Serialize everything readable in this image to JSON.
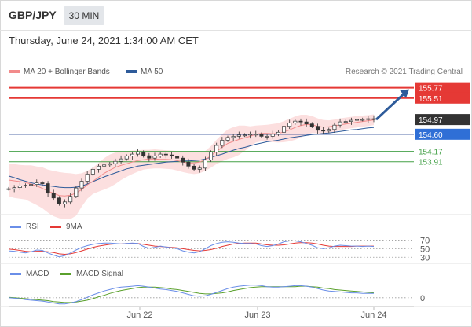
{
  "header": {
    "symbol": "GBP/JPY",
    "timeframe": "30 MIN"
  },
  "date_label": "Thursday, June 24, 2021 1:34:00 AM CET",
  "legend": {
    "ma20_label": "MA 20 + Bollinger Bands",
    "ma50_label": "MA 50",
    "credit": "Research © 2021 Trading Central",
    "rsi_label": "RSI",
    "rsi_ma_label": "9MA",
    "macd_label": "MACD",
    "macd_signal_label": "MACD Signal"
  },
  "colors": {
    "price": "#333333",
    "ma20": "#f28b8b",
    "band": "#fbd4d4",
    "ma50": "#2e5b9a",
    "resistance": "#e53935",
    "pivot": "#1f3f8f",
    "support": "#43a047",
    "rsi": "#6a8ee8",
    "rsi_ma": "#e53935",
    "macd": "#6a8ee8",
    "macd_signal": "#5aa02c",
    "arrow": "#2e5b9a",
    "last_price": "#333333"
  },
  "chart_data": [
    {
      "type": "line",
      "panel": "price",
      "ylim": [
        152.6,
        156.0
      ],
      "x_tick_labels": [
        "Jun 22",
        "Jun 23",
        "Jun 24"
      ],
      "price_labels": [
        "155.77",
        "155.51",
        "154.97",
        "154.60",
        "154.17",
        "153.91"
      ],
      "levels": [
        {
          "value": 155.77,
          "label": "155.77",
          "kind": "resistance"
        },
        {
          "value": 155.51,
          "label": "155.51",
          "kind": "resistance"
        },
        {
          "value": 154.6,
          "label": "154.60",
          "kind": "pivot"
        },
        {
          "value": 154.17,
          "label": "154.17",
          "kind": "support"
        },
        {
          "value": 153.91,
          "label": "153.91",
          "kind": "support"
        }
      ],
      "last_price": 154.97,
      "series": [
        {
          "name": "Price",
          "values": [
            153.23,
            153.26,
            153.3,
            153.32,
            153.34,
            153.38,
            153.36,
            153.12,
            153.0,
            152.85,
            152.9,
            153.04,
            153.25,
            153.42,
            153.6,
            153.72,
            153.8,
            153.83,
            153.86,
            153.92,
            153.98,
            154.05,
            154.1,
            154.15,
            154.06,
            154.0,
            154.05,
            154.1,
            154.08,
            154.05,
            154.0,
            153.9,
            153.8,
            153.72,
            153.75,
            153.95,
            154.15,
            154.32,
            154.45,
            154.52,
            154.55,
            154.58,
            154.58,
            154.6,
            154.6,
            154.55,
            154.55,
            154.6,
            154.65,
            154.8,
            154.88,
            154.93,
            154.91,
            154.86,
            154.8,
            154.7,
            154.68,
            154.72,
            154.83,
            154.91,
            154.92,
            154.95,
            154.97,
            154.97,
            154.99,
            154.97
          ]
        },
        {
          "name": "MA 20",
          "values": [
            153.45,
            153.43,
            153.41,
            153.39,
            153.35,
            153.3,
            153.24,
            153.17,
            153.12,
            153.06,
            153.05,
            153.07,
            153.12,
            153.21,
            153.33,
            153.42,
            153.52,
            153.62,
            153.7,
            153.77,
            153.82,
            153.86,
            153.9,
            153.94,
            153.96,
            153.98,
            153.98,
            153.97,
            153.97,
            153.96,
            153.94,
            153.9,
            153.88,
            153.88,
            153.9,
            153.96,
            154.06,
            154.17,
            154.27,
            154.37,
            154.42,
            154.47,
            154.51,
            154.55,
            154.6,
            154.62,
            154.62,
            154.61,
            154.62,
            154.66,
            154.71,
            154.77,
            154.82,
            154.85,
            154.84,
            154.8,
            154.78,
            154.79,
            154.81,
            154.84,
            154.86,
            154.88,
            154.9,
            154.92,
            154.94,
            154.96
          ]
        },
        {
          "name": "MA 50",
          "values": [
            153.55,
            153.51,
            153.46,
            153.42,
            153.38,
            153.35,
            153.33,
            153.31,
            153.29,
            153.27,
            153.26,
            153.26,
            153.27,
            153.3,
            153.35,
            153.41,
            153.47,
            153.53,
            153.58,
            153.63,
            153.68,
            153.73,
            153.76,
            153.8,
            153.82,
            153.84,
            153.86,
            153.88,
            153.9,
            153.91,
            153.92,
            153.93,
            153.93,
            153.94,
            153.95,
            153.98,
            154.02,
            154.06,
            154.1,
            154.15,
            154.2,
            154.24,
            154.27,
            154.31,
            154.35,
            154.38,
            154.41,
            154.43,
            154.45,
            154.48,
            154.51,
            154.53,
            154.55,
            154.57,
            154.59,
            154.6,
            154.62,
            154.63,
            154.65,
            154.67,
            154.69,
            154.71,
            154.72,
            154.74,
            154.76,
            154.77
          ]
        },
        {
          "name": "Bollinger Upper",
          "values": [
            153.86,
            153.85,
            153.83,
            153.82,
            153.82,
            153.79,
            153.77,
            153.71,
            153.68,
            153.65,
            153.63,
            153.62,
            153.6,
            153.62,
            153.68,
            153.76,
            153.88,
            154.0,
            154.09,
            154.14,
            154.17,
            154.18,
            154.19,
            154.2,
            154.21,
            154.21,
            154.22,
            154.21,
            154.2,
            154.19,
            154.18,
            154.17,
            154.17,
            154.15,
            154.15,
            154.18,
            154.3,
            154.46,
            154.6,
            154.72,
            154.78,
            154.82,
            154.82,
            154.8,
            154.82,
            154.83,
            154.84,
            154.86,
            154.88,
            154.93,
            154.99,
            155.05,
            155.09,
            155.09,
            155.06,
            155.0,
            154.96,
            154.95,
            154.97,
            155.0,
            155.02,
            155.04,
            155.06,
            155.07,
            155.08,
            155.1
          ]
        },
        {
          "name": "Bollinger Lower",
          "values": [
            153.04,
            153.0,
            152.98,
            152.96,
            152.89,
            152.82,
            152.74,
            152.63,
            152.54,
            152.49,
            152.47,
            152.47,
            152.55,
            152.78,
            152.98,
            153.1,
            153.16,
            153.21,
            153.27,
            153.35,
            153.45,
            153.53,
            153.6,
            153.66,
            153.71,
            153.73,
            153.74,
            153.74,
            153.73,
            153.72,
            153.69,
            153.65,
            153.62,
            153.6,
            153.62,
            153.68,
            153.76,
            153.85,
            153.92,
            153.98,
            154.02,
            154.08,
            154.18,
            154.3,
            154.39,
            154.42,
            154.41,
            154.4,
            154.39,
            154.4,
            154.42,
            154.46,
            154.52,
            154.58,
            154.63,
            154.62,
            154.6,
            154.62,
            154.66,
            154.7,
            154.73,
            154.75,
            154.77,
            154.79,
            154.81,
            154.83
          ]
        }
      ]
    },
    {
      "type": "line",
      "panel": "rsi",
      "ylim": [
        25,
        80
      ],
      "y_tick_labels": [
        "70",
        "50",
        "30"
      ],
      "series": [
        {
          "name": "RSI",
          "values": [
            45,
            44,
            42,
            40,
            43,
            47,
            46,
            40,
            35,
            31,
            34,
            40,
            47,
            53,
            57,
            60,
            62,
            63,
            63,
            62,
            61,
            62,
            63,
            62,
            55,
            51,
            53,
            56,
            54,
            52,
            50,
            45,
            42,
            40,
            43,
            50,
            57,
            62,
            65,
            66,
            65,
            63,
            62,
            62,
            61,
            57,
            55,
            57,
            61,
            66,
            68,
            68,
            66,
            62,
            58,
            52,
            50,
            52,
            56,
            58,
            57,
            56,
            56,
            55,
            56,
            55
          ]
        },
        {
          "name": "9MA",
          "values": [
            49,
            48,
            46,
            44,
            43,
            44,
            44,
            43,
            41,
            38,
            37,
            38,
            41,
            45,
            49,
            53,
            56,
            58,
            60,
            61,
            61,
            62,
            62,
            62,
            60,
            58,
            56,
            55,
            54,
            53,
            52,
            50,
            48,
            46,
            45,
            46,
            48,
            51,
            55,
            58,
            61,
            62,
            63,
            63,
            63,
            61,
            59,
            58,
            58,
            59,
            61,
            63,
            64,
            64,
            63,
            61,
            58,
            56,
            55,
            55,
            55,
            55,
            56,
            56,
            56,
            56
          ]
        }
      ]
    },
    {
      "type": "line",
      "panel": "macd",
      "ylim": [
        -0.15,
        0.42
      ],
      "y_tick_labels": [
        "0"
      ],
      "series": [
        {
          "name": "MACD",
          "values": [
            0.0,
            -0.01,
            -0.02,
            -0.04,
            -0.05,
            -0.06,
            -0.07,
            -0.09,
            -0.11,
            -0.13,
            -0.13,
            -0.11,
            -0.08,
            -0.04,
            0.01,
            0.06,
            0.1,
            0.14,
            0.17,
            0.2,
            0.22,
            0.23,
            0.24,
            0.25,
            0.24,
            0.22,
            0.2,
            0.18,
            0.17,
            0.15,
            0.13,
            0.1,
            0.07,
            0.04,
            0.03,
            0.04,
            0.07,
            0.11,
            0.15,
            0.19,
            0.22,
            0.24,
            0.25,
            0.26,
            0.26,
            0.25,
            0.23,
            0.22,
            0.22,
            0.23,
            0.24,
            0.25,
            0.25,
            0.24,
            0.22,
            0.19,
            0.16,
            0.14,
            0.13,
            0.12,
            0.11,
            0.1,
            0.1,
            0.09,
            0.09,
            0.09
          ]
        },
        {
          "name": "MACD Signal",
          "values": [
            0.01,
            0.0,
            -0.01,
            -0.02,
            -0.03,
            -0.04,
            -0.05,
            -0.06,
            -0.08,
            -0.09,
            -0.1,
            -0.1,
            -0.09,
            -0.07,
            -0.05,
            -0.02,
            0.02,
            0.05,
            0.09,
            0.12,
            0.15,
            0.17,
            0.19,
            0.21,
            0.22,
            0.22,
            0.22,
            0.21,
            0.2,
            0.18,
            0.17,
            0.15,
            0.13,
            0.11,
            0.09,
            0.08,
            0.08,
            0.09,
            0.1,
            0.12,
            0.15,
            0.17,
            0.19,
            0.21,
            0.22,
            0.23,
            0.23,
            0.23,
            0.23,
            0.23,
            0.23,
            0.23,
            0.24,
            0.24,
            0.23,
            0.22,
            0.2,
            0.19,
            0.17,
            0.16,
            0.15,
            0.14,
            0.13,
            0.12,
            0.11,
            0.1
          ]
        }
      ]
    }
  ]
}
